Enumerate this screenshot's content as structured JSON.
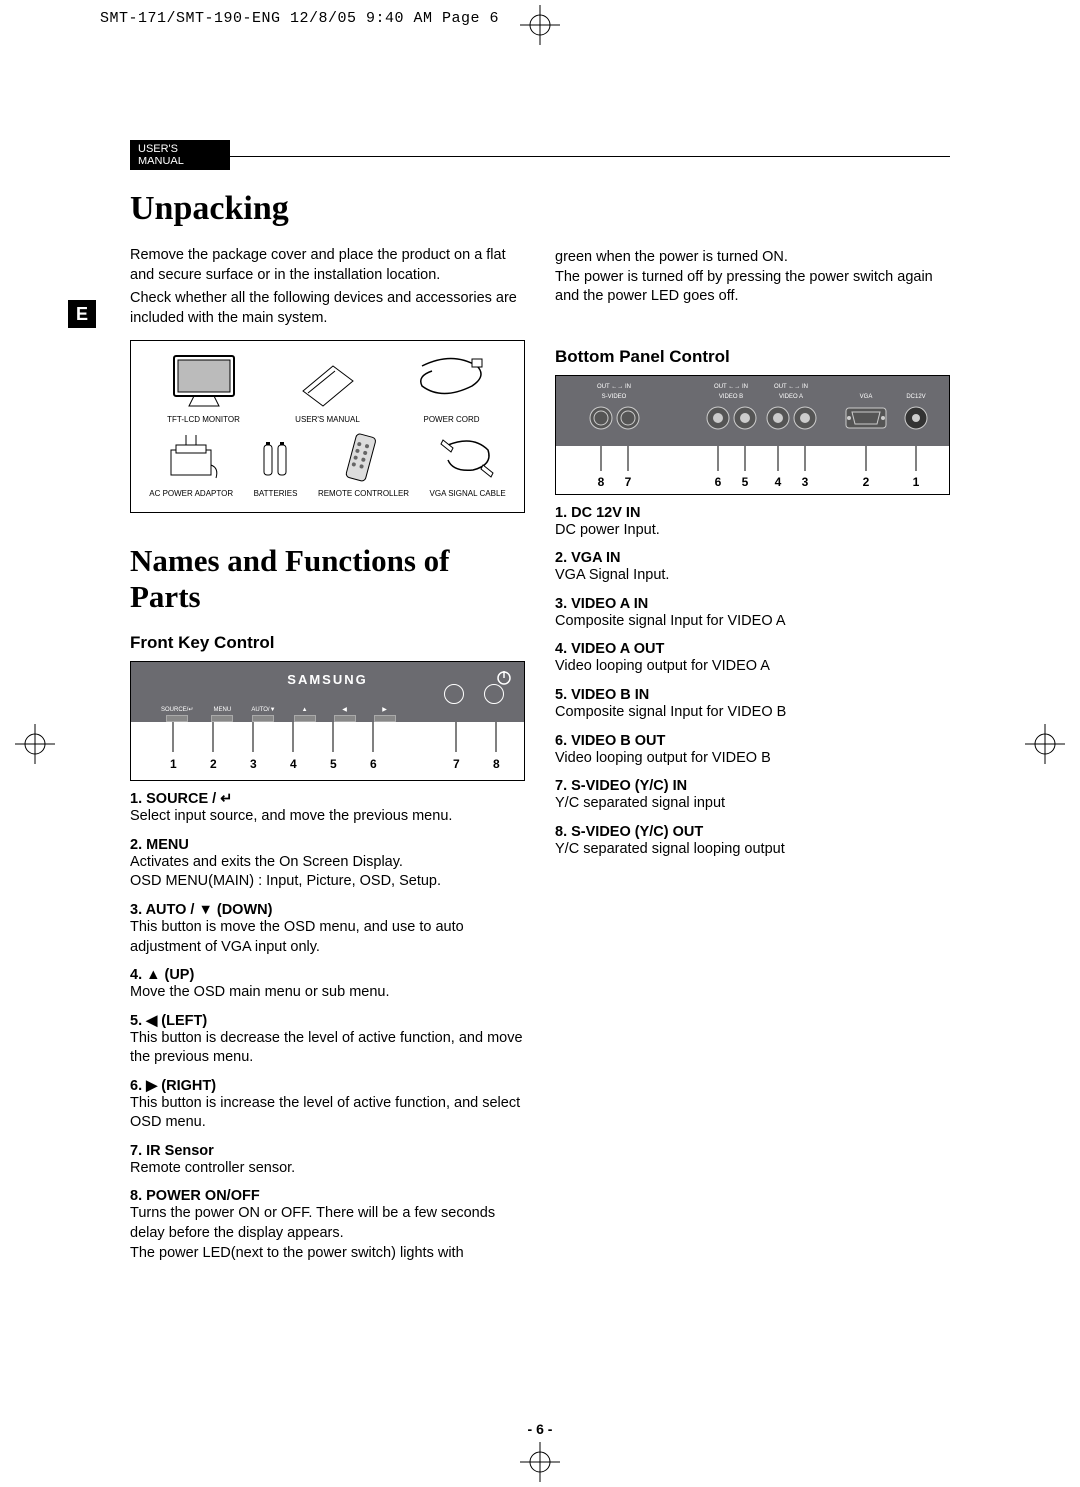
{
  "print_header": "SMT-171/SMT-190-ENG  12/8/05  9:40 AM  Page 6",
  "manual_label": "USER'S MANUAL",
  "lang_tab": "E",
  "page_number": "- 6 -",
  "colors": {
    "panel_gray": "#6b6b70",
    "tab_black": "#000000",
    "text_black": "#000000",
    "page_bg": "#ffffff"
  },
  "unpacking": {
    "title": "Unpacking",
    "p1": "Remove the package cover and place the product on a flat and secure surface or in the installation location.",
    "p2": "Check whether all the following devices and accessories are included with the main system.",
    "items_row1": [
      "TFT-LCD MONITOR",
      "USER'S MANUAL",
      "POWER CORD"
    ],
    "items_row2": [
      "AC POWER ADAPTOR",
      "BATTERIES",
      "REMOTE CONTROLLER",
      "VGA SIGNAL CABLE"
    ]
  },
  "names_section": {
    "title": "Names and Functions of Parts",
    "front_heading": "Front Key Control",
    "brand": "SAMSUNG",
    "front_btn_labels": [
      "SOURCE/↵",
      "MENU",
      "AUTO/▼",
      "▲",
      "◀",
      "▶"
    ],
    "front_numbers": [
      "1",
      "2",
      "3",
      "4",
      "5",
      "6",
      "7",
      "8"
    ],
    "front_list": [
      {
        "head": "1. SOURCE / ↵",
        "body": "Select input source, and move the previous menu."
      },
      {
        "head": "2. MENU",
        "body": "Activates and exits the On Screen Display.\nOSD MENU(MAIN) : Input, Picture, OSD, Setup."
      },
      {
        "head": "3. AUTO / ▼ (DOWN)",
        "body": "This button is move the OSD menu, and use to auto adjustment of VGA input only."
      },
      {
        "head": "4. ▲ (UP)",
        "body": "Move the OSD main menu or sub menu."
      },
      {
        "head": "5. ◀ (LEFT)",
        "body": "This button is decrease the level of active function, and move the previous menu."
      },
      {
        "head": "6. ▶ (RIGHT)",
        "body": "This button is increase the level of active function, and select OSD menu."
      },
      {
        "head": "7. IR Sensor",
        "body": "Remote controller sensor."
      },
      {
        "head": "8. POWER ON/OFF",
        "body": "Turns the power ON or OFF. There will be a few seconds delay before the display appears.\nThe power LED(next to the power switch) lights with"
      }
    ]
  },
  "right_col": {
    "continuation": "green when the power is turned ON.\nThe power is turned off by pressing the power switch again and the power LED goes off.",
    "bottom_heading": "Bottom Panel Control",
    "conn_groups": [
      {
        "top": "OUT ←→ IN",
        "bottom": "S-VIDEO"
      },
      {
        "top": "OUT ←→ IN",
        "bottom": "VIDEO B"
      },
      {
        "top": "OUT ←→ IN",
        "bottom": "VIDEO A"
      },
      {
        "top": "",
        "bottom": "VGA"
      },
      {
        "top": "",
        "bottom": "DC12V"
      }
    ],
    "bottom_numbers": [
      "8",
      "7",
      "6",
      "5",
      "4",
      "3",
      "2",
      "1"
    ],
    "bottom_list": [
      {
        "head": "1. DC 12V IN",
        "body": "DC power Input."
      },
      {
        "head": "2. VGA IN",
        "body": "VGA Signal Input."
      },
      {
        "head": "3. VIDEO A IN",
        "body": "Composite signal Input for VIDEO A"
      },
      {
        "head": "4. VIDEO A OUT",
        "body": "Video looping output for VIDEO A"
      },
      {
        "head": "5. VIDEO B IN",
        "body": "Composite signal Input for VIDEO B"
      },
      {
        "head": "6. VIDEO B OUT",
        "body": "Video looping output for VIDEO B"
      },
      {
        "head": "7. S-VIDEO (Y/C) IN",
        "body": "Y/C separated signal input"
      },
      {
        "head": "8. S-VIDEO (Y/C) OUT",
        "body": "Y/C separated signal looping output"
      }
    ]
  }
}
